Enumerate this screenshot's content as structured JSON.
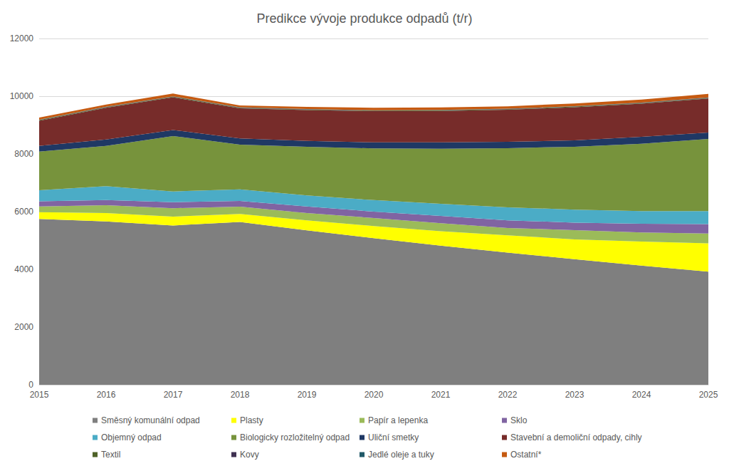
{
  "chart_data": {
    "type": "area",
    "title": "Predikce vývoje produkce odpadů (t/r)",
    "categories": [
      "2015",
      "2016",
      "2017",
      "2018",
      "2019",
      "2020",
      "2021",
      "2022",
      "2023",
      "2024",
      "2025"
    ],
    "series": [
      {
        "name": "Směsný komunální odpad",
        "color": "#7f7f7f",
        "values": [
          5750,
          5660,
          5520,
          5640,
          5350,
          5080,
          4820,
          4580,
          4350,
          4130,
          3920
        ]
      },
      {
        "name": "Plasty",
        "color": "#ffff00",
        "values": [
          230,
          290,
          310,
          280,
          350,
          420,
          500,
          600,
          690,
          830,
          980
        ]
      },
      {
        "name": "Papír a lepenka",
        "color": "#9bbb59",
        "values": [
          200,
          270,
          290,
          250,
          250,
          280,
          280,
          250,
          320,
          320,
          340
        ]
      },
      {
        "name": "Sklo",
        "color": "#8064a2",
        "values": [
          180,
          180,
          210,
          200,
          230,
          220,
          250,
          270,
          260,
          300,
          330
        ]
      },
      {
        "name": "Objemný odpad",
        "color": "#4bacc6",
        "values": [
          380,
          480,
          370,
          400,
          380,
          400,
          420,
          450,
          450,
          440,
          450
        ]
      },
      {
        "name": "Biologicky rozložitelný odpad",
        "color": "#77933c",
        "values": [
          1340,
          1400,
          1920,
          1550,
          1690,
          1790,
          1910,
          2050,
          2180,
          2330,
          2500
        ]
      },
      {
        "name": "Uliční smetky",
        "color": "#1f3864",
        "values": [
          200,
          220,
          210,
          220,
          200,
          210,
          220,
          220,
          220,
          240,
          220
        ]
      },
      {
        "name": "Stavební a demoliční odpady, cihly",
        "color": "#772c2a",
        "values": [
          870,
          1100,
          1130,
          1040,
          1070,
          1080,
          1090,
          1110,
          1150,
          1150,
          1180
        ]
      },
      {
        "name": "Textil",
        "color": "#4f6228",
        "values": [
          20,
          20,
          20,
          20,
          20,
          20,
          20,
          20,
          20,
          20,
          20
        ]
      },
      {
        "name": "Kovy",
        "color": "#3f3151",
        "values": [
          10,
          10,
          10,
          10,
          10,
          10,
          10,
          10,
          10,
          10,
          10
        ]
      },
      {
        "name": "Jedlé oleje a tuky",
        "color": "#215968",
        "values": [
          5,
          5,
          5,
          5,
          5,
          5,
          5,
          5,
          5,
          5,
          5
        ]
      },
      {
        "name": "Ostatní*",
        "color": "#c55a11",
        "values": [
          75,
          75,
          95,
          65,
          75,
          85,
          85,
          85,
          95,
          105,
          125
        ]
      }
    ],
    "ylim": [
      0,
      12000
    ],
    "yticks": [
      0,
      2000,
      4000,
      6000,
      8000,
      10000,
      12000
    ],
    "stacked": true,
    "grid": true,
    "legend": "bottom"
  }
}
